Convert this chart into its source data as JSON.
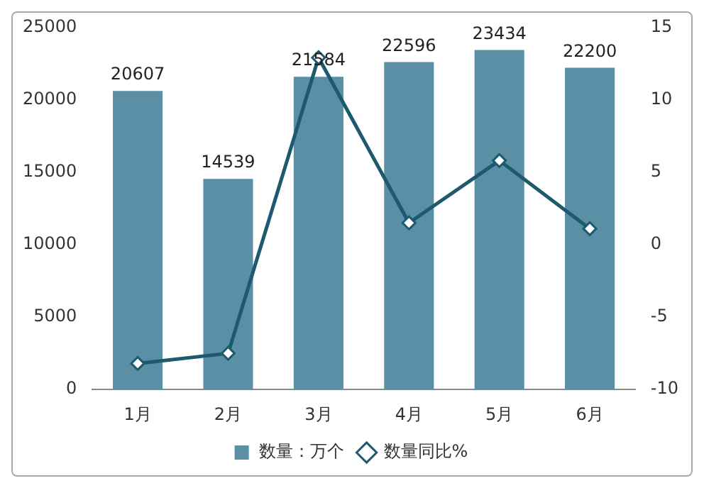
{
  "chart_data": {
    "type": "bar",
    "categories": [
      "1月",
      "2月",
      "3月",
      "4月",
      "5月",
      "6月"
    ],
    "series": [
      {
        "name": "数量：万个",
        "color": "#5b8fa6",
        "values": [
          20607,
          14539,
          21584,
          22596,
          23434,
          22200
        ],
        "value_labels": [
          "20607",
          "14539",
          "21584",
          "22596",
          "23434",
          "22200"
        ]
      },
      {
        "name": "数量同比%",
        "type": "line",
        "axis": "y2",
        "color": "#1d5a6e",
        "marker": "diamond",
        "values": [
          -8.2,
          -7.5,
          12.9,
          1.5,
          5.8,
          1.1
        ]
      }
    ],
    "ylim": [
      0,
      25000
    ],
    "yticks": [
      0,
      5000,
      10000,
      15000,
      20000,
      25000
    ],
    "y2lim": [
      -10,
      15
    ],
    "y2ticks": [
      -10,
      -5,
      0,
      5,
      10,
      15
    ],
    "grid": false,
    "legend": "bottom"
  }
}
